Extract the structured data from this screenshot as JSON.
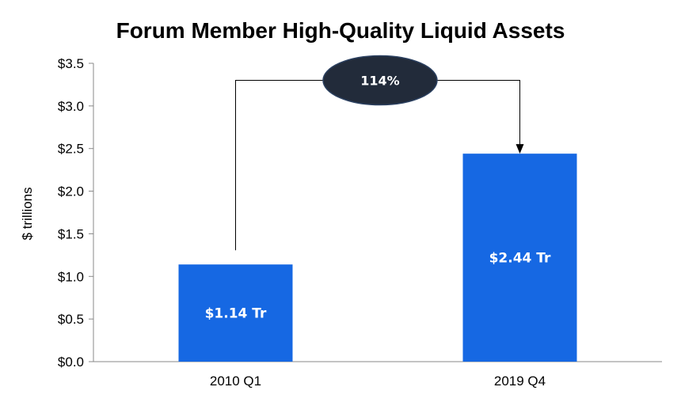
{
  "chart_data": {
    "type": "bar",
    "title": "Forum Member High-Quality Liquid Assets",
    "ylabel": "$ trillions",
    "xlabel": "",
    "categories": [
      "2010 Q1",
      "2019 Q4"
    ],
    "values": [
      1.14,
      2.44
    ],
    "data_labels": [
      "$1.14 Tr",
      "$2.44 Tr"
    ],
    "yticks": [
      0.0,
      0.5,
      1.0,
      1.5,
      2.0,
      2.5,
      3.0,
      3.5
    ],
    "ytick_labels": [
      "$0.0",
      "$0.5",
      "$1.0",
      "$1.5",
      "$2.0",
      "$2.5",
      "$3.0",
      "$3.5"
    ],
    "ylim": [
      0,
      3.5
    ],
    "grid": false,
    "bar_color": "#1668e3",
    "annotation": {
      "text": "114%",
      "from_category": "2010 Q1",
      "to_category": "2019 Q4",
      "fill_color": "#222b3a"
    }
  }
}
